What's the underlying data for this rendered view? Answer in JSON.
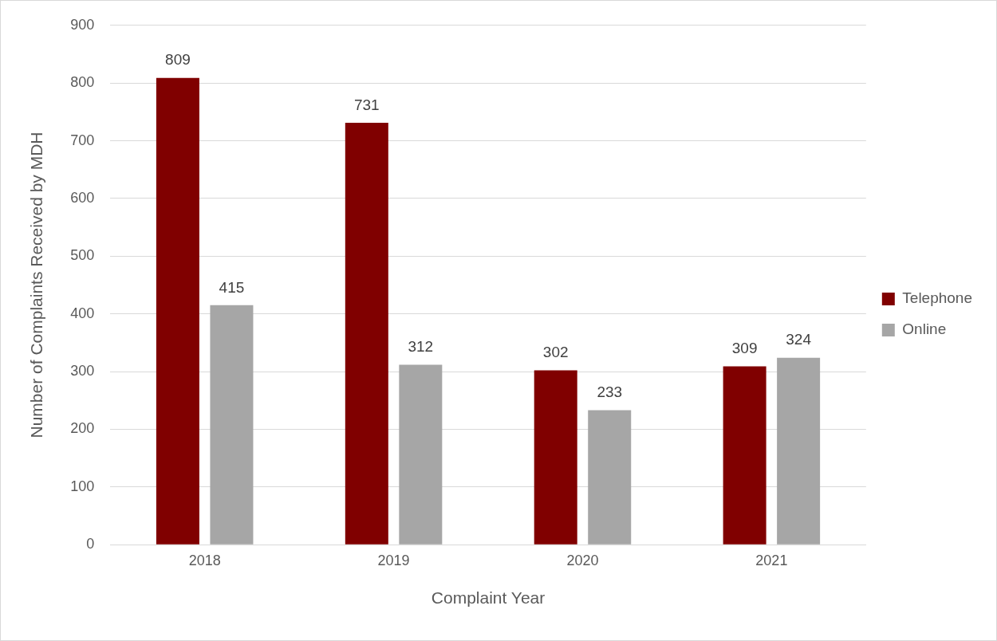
{
  "chart_data": {
    "type": "bar",
    "xlabel": "Complaint Year",
    "ylabel": "Number of Complaints Received by MDH",
    "categories": [
      "2018",
      "2019",
      "2020",
      "2021"
    ],
    "series": [
      {
        "name": "Telephone",
        "color": "#800000",
        "values": [
          809,
          731,
          302,
          309
        ]
      },
      {
        "name": "Online",
        "color": "#a6a6a6",
        "values": [
          415,
          312,
          233,
          324
        ]
      }
    ],
    "ylim": [
      0,
      900
    ],
    "yticks": [
      0,
      100,
      200,
      300,
      400,
      500,
      600,
      700,
      800,
      900
    ],
    "grid": "y",
    "legend": "right",
    "data_labels": true
  }
}
